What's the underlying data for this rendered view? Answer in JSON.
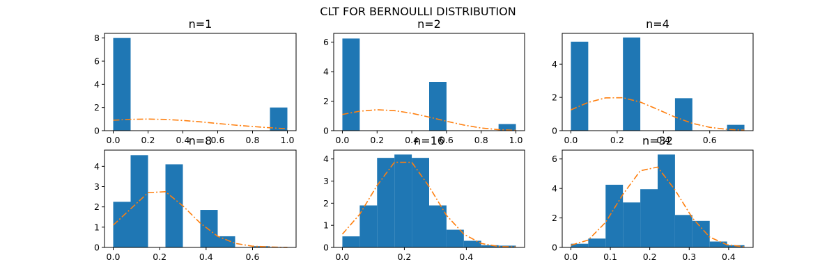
{
  "figure": {
    "suptitle": "CLT FOR BERNOULLI DISTRIBUTION"
  },
  "colors": {
    "bar": "#1f77b4",
    "curve": "#ff7f0e",
    "axes": "#000000",
    "background": "#ffffff"
  },
  "chart_data": [
    {
      "type": "bar",
      "title": "n=1",
      "xlim": [
        -0.05,
        1.05
      ],
      "ylim": [
        0,
        8.4
      ],
      "xticks": [
        0.0,
        0.2,
        0.4,
        0.6,
        0.8,
        1.0
      ],
      "xtick_labels": [
        "0.0",
        "0.2",
        "0.4",
        "0.6",
        "0.8",
        "1.0"
      ],
      "yticks": [
        0,
        2,
        4,
        6,
        8
      ],
      "ytick_labels": [
        "0",
        "2",
        "4",
        "6",
        "8"
      ],
      "bins": {
        "start": 0.0,
        "width": 0.1,
        "heights": [
          8.0,
          0,
          0,
          0,
          0,
          0,
          0,
          0,
          0,
          2.0
        ]
      },
      "curve": {
        "x": [
          0.0,
          0.1,
          0.2,
          0.3,
          0.4,
          0.5,
          0.6,
          0.7,
          0.8,
          0.9,
          1.0
        ],
        "y": [
          0.9,
          0.98,
          1.0,
          0.97,
          0.88,
          0.76,
          0.62,
          0.48,
          0.36,
          0.25,
          0.16
        ]
      }
    },
    {
      "type": "bar",
      "title": "n=2",
      "xlim": [
        -0.05,
        1.05
      ],
      "ylim": [
        0,
        6.6
      ],
      "xticks": [
        0.0,
        0.2,
        0.4,
        0.6,
        0.8,
        1.0
      ],
      "xtick_labels": [
        "0.0",
        "0.2",
        "0.4",
        "0.6",
        "0.8",
        "1.0"
      ],
      "yticks": [
        0,
        2,
        4,
        6
      ],
      "ytick_labels": [
        "0",
        "2",
        "4",
        "6"
      ],
      "bins": {
        "start": 0.0,
        "width": 0.1,
        "heights": [
          6.25,
          0,
          0,
          0,
          0,
          3.3,
          0,
          0,
          0,
          0.45
        ]
      },
      "curve": {
        "x": [
          0.0,
          0.1,
          0.2,
          0.3,
          0.4,
          0.5,
          0.6,
          0.7,
          0.8,
          0.9,
          1.0
        ],
        "y": [
          1.1,
          1.32,
          1.42,
          1.36,
          1.18,
          0.92,
          0.64,
          0.38,
          0.18,
          0.07,
          0.02
        ]
      }
    },
    {
      "type": "bar",
      "title": "n=4",
      "xlim": [
        -0.0375,
        0.7875
      ],
      "ylim": [
        0,
        5.85
      ],
      "xticks": [
        0.0,
        0.2,
        0.4,
        0.6
      ],
      "xtick_labels": [
        "0.0",
        "0.2",
        "0.4",
        "0.6"
      ],
      "yticks": [
        0,
        2,
        4
      ],
      "ytick_labels": [
        "0",
        "2",
        "4"
      ],
      "bins": {
        "start": 0.0,
        "width": 0.075,
        "heights": [
          5.35,
          0,
          0,
          5.6,
          0,
          0,
          1.95,
          0,
          0,
          0.35
        ]
      },
      "curve": {
        "x": [
          0.0,
          0.075,
          0.15,
          0.225,
          0.3,
          0.375,
          0.45,
          0.525,
          0.6,
          0.675,
          0.75
        ],
        "y": [
          1.25,
          1.7,
          1.97,
          1.98,
          1.72,
          1.28,
          0.82,
          0.44,
          0.2,
          0.08,
          0.03
        ]
      }
    },
    {
      "type": "bar",
      "title": "n=8",
      "xlim": [
        -0.0375,
        0.7875
      ],
      "ylim": [
        0,
        4.8
      ],
      "xticks": [
        0.0,
        0.2,
        0.4,
        0.6
      ],
      "xtick_labels": [
        "0.0",
        "0.2",
        "0.4",
        "0.6"
      ],
      "yticks": [
        0,
        1,
        2,
        3,
        4
      ],
      "ytick_labels": [
        "0",
        "1",
        "2",
        "3",
        "4"
      ],
      "bins": {
        "start": 0.0,
        "width": 0.075,
        "heights": [
          2.25,
          4.55,
          0,
          4.1,
          0,
          1.85,
          0.55,
          0,
          0.06,
          0.02
        ]
      },
      "curve": {
        "x": [
          0.0,
          0.075,
          0.15,
          0.225,
          0.3,
          0.375,
          0.45,
          0.525,
          0.6,
          0.675,
          0.75
        ],
        "y": [
          1.1,
          1.9,
          2.7,
          2.75,
          2.05,
          1.2,
          0.55,
          0.2,
          0.06,
          0.02,
          0.0
        ]
      }
    },
    {
      "type": "bar",
      "title": "n=16",
      "xlim": [
        -0.028,
        0.588
      ],
      "ylim": [
        0,
        4.4
      ],
      "xticks": [
        0.0,
        0.2,
        0.4
      ],
      "xtick_labels": [
        "0.0",
        "0.2",
        "0.4"
      ],
      "yticks": [
        0,
        1,
        2,
        3,
        4
      ],
      "ytick_labels": [
        "0",
        "1",
        "2",
        "3",
        "4"
      ],
      "bins": {
        "start": 0.0,
        "width": 0.056,
        "heights": [
          0.5,
          1.9,
          4.05,
          4.2,
          4.05,
          1.9,
          0.8,
          0.3,
          0.1,
          0.08
        ]
      },
      "curve": {
        "x": [
          0.0,
          0.056,
          0.112,
          0.168,
          0.224,
          0.28,
          0.336,
          0.392,
          0.448,
          0.504,
          0.56
        ],
        "y": [
          0.6,
          1.5,
          2.8,
          3.85,
          3.85,
          2.75,
          1.45,
          0.6,
          0.18,
          0.04,
          0.02
        ]
      }
    },
    {
      "type": "bar",
      "title": "n=32",
      "xlim": [
        -0.022,
        0.462
      ],
      "ylim": [
        0,
        6.6
      ],
      "xticks": [
        0.0,
        0.1,
        0.2,
        0.3,
        0.4
      ],
      "xtick_labels": [
        "0.0",
        "0.1",
        "0.2",
        "0.3",
        "0.4"
      ],
      "yticks": [
        0,
        2,
        4,
        6
      ],
      "ytick_labels": [
        "0",
        "2",
        "4",
        "6"
      ],
      "bins": {
        "start": 0.0,
        "width": 0.044,
        "heights": [
          0.25,
          0.6,
          4.25,
          3.05,
          3.95,
          6.3,
          2.2,
          1.8,
          0.4,
          0.15
        ]
      },
      "curve": {
        "x": [
          0.0,
          0.044,
          0.088,
          0.132,
          0.176,
          0.22,
          0.264,
          0.308,
          0.352,
          0.396,
          0.44
        ],
        "y": [
          0.15,
          0.5,
          1.7,
          3.6,
          5.2,
          5.45,
          3.9,
          2.0,
          0.7,
          0.18,
          0.04
        ]
      }
    }
  ]
}
